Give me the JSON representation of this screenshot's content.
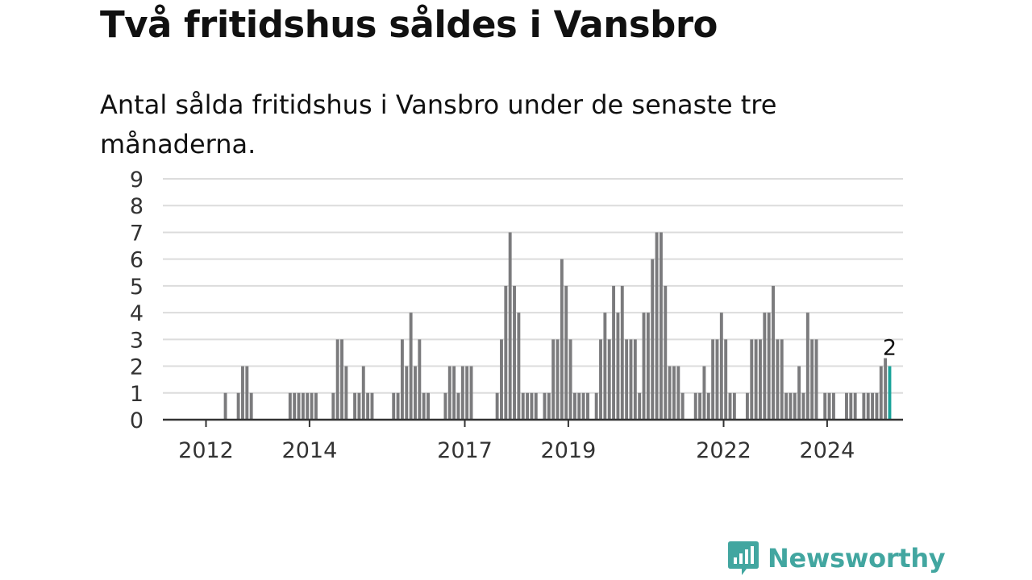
{
  "title": "Två fritidshus såldes i Vansbro",
  "subtitle": "Antal sålda fritidshus i Vansbro under de senaste tre månaderna.",
  "brand": {
    "name": "Newsworthy",
    "logo_icon": "newsworthy-chart-bubble-icon"
  },
  "colors": {
    "bar": "#7b7b7d",
    "highlight": "#1aa39a",
    "grid": "#dcdcdc",
    "axis": "#333333",
    "brand": "#42a6a0"
  },
  "chart_data": {
    "type": "bar",
    "title": "Två fritidshus såldes i Vansbro",
    "subtitle": "Antal sålda fritidshus i Vansbro under de senaste tre månaderna.",
    "xlabel": "",
    "ylabel": "",
    "ylim": [
      0,
      9
    ],
    "y_ticks": [
      0,
      1,
      2,
      3,
      4,
      5,
      6,
      7,
      8,
      9
    ],
    "grid": true,
    "x_start": "2011-01",
    "x_end": "2025-03",
    "x_ticks": [
      {
        "label": "2012",
        "date": "2012-01"
      },
      {
        "label": "2014",
        "date": "2014-01"
      },
      {
        "label": "2017",
        "date": "2017-01"
      },
      {
        "label": "2019",
        "date": "2019-01"
      },
      {
        "label": "2022",
        "date": "2022-01"
      },
      {
        "label": "2024",
        "date": "2024-01"
      }
    ],
    "highlight_label": "2",
    "series": [
      {
        "values": [
          {
            "date": "2011-09",
            "value": 0
          },
          {
            "date": "2011-10",
            "value": 0
          },
          {
            "date": "2011-11",
            "value": 0
          },
          {
            "date": "2011-12",
            "value": 0
          },
          {
            "date": "2012-01",
            "value": 0
          },
          {
            "date": "2012-02",
            "value": 0
          },
          {
            "date": "2012-03",
            "value": 0
          },
          {
            "date": "2012-04",
            "value": 0
          },
          {
            "date": "2012-05",
            "value": 1
          },
          {
            "date": "2012-06",
            "value": 0
          },
          {
            "date": "2012-07",
            "value": 0
          },
          {
            "date": "2012-08",
            "value": 1
          },
          {
            "date": "2012-09",
            "value": 2
          },
          {
            "date": "2012-10",
            "value": 2
          },
          {
            "date": "2012-11",
            "value": 1
          },
          {
            "date": "2012-12",
            "value": 0
          },
          {
            "date": "2013-01",
            "value": 0
          },
          {
            "date": "2013-02",
            "value": 0
          },
          {
            "date": "2013-03",
            "value": 0
          },
          {
            "date": "2013-04",
            "value": 0
          },
          {
            "date": "2013-05",
            "value": 0
          },
          {
            "date": "2013-06",
            "value": 0
          },
          {
            "date": "2013-07",
            "value": 0
          },
          {
            "date": "2013-08",
            "value": 1
          },
          {
            "date": "2013-09",
            "value": 1
          },
          {
            "date": "2013-10",
            "value": 1
          },
          {
            "date": "2013-11",
            "value": 1
          },
          {
            "date": "2013-12",
            "value": 1
          },
          {
            "date": "2014-01",
            "value": 1
          },
          {
            "date": "2014-02",
            "value": 1
          },
          {
            "date": "2014-03",
            "value": 0
          },
          {
            "date": "2014-04",
            "value": 0
          },
          {
            "date": "2014-05",
            "value": 0
          },
          {
            "date": "2014-06",
            "value": 1
          },
          {
            "date": "2014-07",
            "value": 3
          },
          {
            "date": "2014-08",
            "value": 3
          },
          {
            "date": "2014-09",
            "value": 2
          },
          {
            "date": "2014-10",
            "value": 0
          },
          {
            "date": "2014-11",
            "value": 1
          },
          {
            "date": "2014-12",
            "value": 1
          },
          {
            "date": "2015-01",
            "value": 2
          },
          {
            "date": "2015-02",
            "value": 1
          },
          {
            "date": "2015-03",
            "value": 1
          },
          {
            "date": "2015-04",
            "value": 0
          },
          {
            "date": "2015-05",
            "value": 0
          },
          {
            "date": "2015-06",
            "value": 0
          },
          {
            "date": "2015-07",
            "value": 0
          },
          {
            "date": "2015-08",
            "value": 1
          },
          {
            "date": "2015-09",
            "value": 1
          },
          {
            "date": "2015-10",
            "value": 3
          },
          {
            "date": "2015-11",
            "value": 2
          },
          {
            "date": "2015-12",
            "value": 4
          },
          {
            "date": "2016-01",
            "value": 2
          },
          {
            "date": "2016-02",
            "value": 3
          },
          {
            "date": "2016-03",
            "value": 1
          },
          {
            "date": "2016-04",
            "value": 1
          },
          {
            "date": "2016-05",
            "value": 0
          },
          {
            "date": "2016-06",
            "value": 0
          },
          {
            "date": "2016-07",
            "value": 0
          },
          {
            "date": "2016-08",
            "value": 1
          },
          {
            "date": "2016-09",
            "value": 2
          },
          {
            "date": "2016-10",
            "value": 2
          },
          {
            "date": "2016-11",
            "value": 1
          },
          {
            "date": "2016-12",
            "value": 2
          },
          {
            "date": "2017-01",
            "value": 2
          },
          {
            "date": "2017-02",
            "value": 2
          },
          {
            "date": "2017-03",
            "value": 0
          },
          {
            "date": "2017-04",
            "value": 0
          },
          {
            "date": "2017-05",
            "value": 0
          },
          {
            "date": "2017-06",
            "value": 0
          },
          {
            "date": "2017-07",
            "value": 0
          },
          {
            "date": "2017-08",
            "value": 1
          },
          {
            "date": "2017-09",
            "value": 3
          },
          {
            "date": "2017-10",
            "value": 5
          },
          {
            "date": "2017-11",
            "value": 7
          },
          {
            "date": "2017-12",
            "value": 5
          },
          {
            "date": "2018-01",
            "value": 4
          },
          {
            "date": "2018-02",
            "value": 1
          },
          {
            "date": "2018-03",
            "value": 1
          },
          {
            "date": "2018-04",
            "value": 1
          },
          {
            "date": "2018-05",
            "value": 1
          },
          {
            "date": "2018-06",
            "value": 0
          },
          {
            "date": "2018-07",
            "value": 1
          },
          {
            "date": "2018-08",
            "value": 1
          },
          {
            "date": "2018-09",
            "value": 3
          },
          {
            "date": "2018-10",
            "value": 3
          },
          {
            "date": "2018-11",
            "value": 6
          },
          {
            "date": "2018-12",
            "value": 5
          },
          {
            "date": "2019-01",
            "value": 3
          },
          {
            "date": "2019-02",
            "value": 1
          },
          {
            "date": "2019-03",
            "value": 1
          },
          {
            "date": "2019-04",
            "value": 1
          },
          {
            "date": "2019-05",
            "value": 1
          },
          {
            "date": "2019-06",
            "value": 0
          },
          {
            "date": "2019-07",
            "value": 1
          },
          {
            "date": "2019-08",
            "value": 3
          },
          {
            "date": "2019-09",
            "value": 4
          },
          {
            "date": "2019-10",
            "value": 3
          },
          {
            "date": "2019-11",
            "value": 5
          },
          {
            "date": "2019-12",
            "value": 4
          },
          {
            "date": "2020-01",
            "value": 5
          },
          {
            "date": "2020-02",
            "value": 3
          },
          {
            "date": "2020-03",
            "value": 3
          },
          {
            "date": "2020-04",
            "value": 3
          },
          {
            "date": "2020-05",
            "value": 1
          },
          {
            "date": "2020-06",
            "value": 4
          },
          {
            "date": "2020-07",
            "value": 4
          },
          {
            "date": "2020-08",
            "value": 6
          },
          {
            "date": "2020-09",
            "value": 7
          },
          {
            "date": "2020-10",
            "value": 7
          },
          {
            "date": "2020-11",
            "value": 5
          },
          {
            "date": "2020-12",
            "value": 2
          },
          {
            "date": "2021-01",
            "value": 2
          },
          {
            "date": "2021-02",
            "value": 2
          },
          {
            "date": "2021-03",
            "value": 1
          },
          {
            "date": "2021-04",
            "value": 0
          },
          {
            "date": "2021-05",
            "value": 0
          },
          {
            "date": "2021-06",
            "value": 1
          },
          {
            "date": "2021-07",
            "value": 1
          },
          {
            "date": "2021-08",
            "value": 2
          },
          {
            "date": "2021-09",
            "value": 1
          },
          {
            "date": "2021-10",
            "value": 3
          },
          {
            "date": "2021-11",
            "value": 3
          },
          {
            "date": "2021-12",
            "value": 4
          },
          {
            "date": "2022-01",
            "value": 3
          },
          {
            "date": "2022-02",
            "value": 1
          },
          {
            "date": "2022-03",
            "value": 1
          },
          {
            "date": "2022-04",
            "value": 0
          },
          {
            "date": "2022-05",
            "value": 0
          },
          {
            "date": "2022-06",
            "value": 1
          },
          {
            "date": "2022-07",
            "value": 3
          },
          {
            "date": "2022-08",
            "value": 3
          },
          {
            "date": "2022-09",
            "value": 3
          },
          {
            "date": "2022-10",
            "value": 4
          },
          {
            "date": "2022-11",
            "value": 4
          },
          {
            "date": "2022-12",
            "value": 5
          },
          {
            "date": "2023-01",
            "value": 3
          },
          {
            "date": "2023-02",
            "value": 3
          },
          {
            "date": "2023-03",
            "value": 1
          },
          {
            "date": "2023-04",
            "value": 1
          },
          {
            "date": "2023-05",
            "value": 1
          },
          {
            "date": "2023-06",
            "value": 2
          },
          {
            "date": "2023-07",
            "value": 1
          },
          {
            "date": "2023-08",
            "value": 4
          },
          {
            "date": "2023-09",
            "value": 3
          },
          {
            "date": "2023-10",
            "value": 3
          },
          {
            "date": "2023-11",
            "value": 0
          },
          {
            "date": "2023-12",
            "value": 1
          },
          {
            "date": "2024-01",
            "value": 1
          },
          {
            "date": "2024-02",
            "value": 1
          },
          {
            "date": "2024-03",
            "value": 0
          },
          {
            "date": "2024-04",
            "value": 0
          },
          {
            "date": "2024-05",
            "value": 1
          },
          {
            "date": "2024-06",
            "value": 1
          },
          {
            "date": "2024-07",
            "value": 1
          },
          {
            "date": "2024-08",
            "value": 0
          },
          {
            "date": "2024-09",
            "value": 1
          },
          {
            "date": "2024-10",
            "value": 1
          },
          {
            "date": "2024-11",
            "value": 1
          },
          {
            "date": "2024-12",
            "value": 1
          },
          {
            "date": "2025-01",
            "value": 2
          },
          {
            "date": "2025-02",
            "value": 2.3
          },
          {
            "date": "2025-03",
            "value": 2,
            "highlight": true
          }
        ]
      }
    ]
  }
}
